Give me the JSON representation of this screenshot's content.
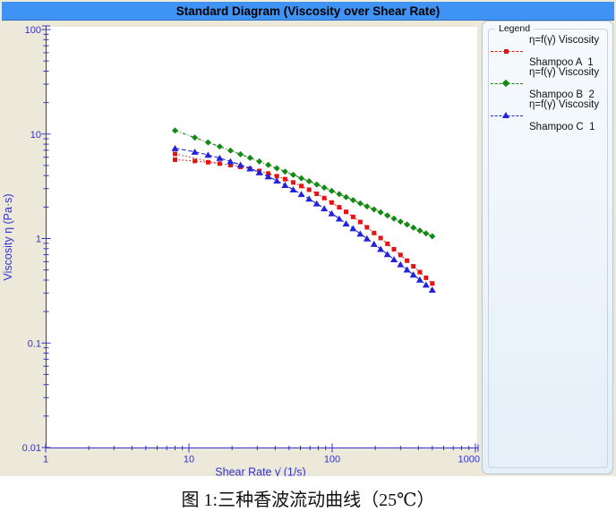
{
  "title_bar": {
    "text": "Standard Diagram (Viscosity over Shear Rate)"
  },
  "legend": {
    "title": "Legend"
  },
  "caption": "图 1:三种香波流动曲线（25℃）",
  "colors": {
    "title_bar_bg": "#3e93f4",
    "widget_bg": "#ece8da",
    "plot_bg": "#ffffff",
    "axis": "#3232cd",
    "legend_panel_bg": "#eaf2fb",
    "series_a_red": "#e41414",
    "series_b_green": "#128a12",
    "series_c_blue": "#2222dd"
  },
  "chart_data": {
    "type": "line",
    "title": "Standard Diagram (Viscosity over Shear Rate)",
    "x_axis": {
      "label": "Shear Rate γ̇ (1/s)",
      "scale": "log",
      "min": 1,
      "max": 1000,
      "ticks": [
        "1",
        "10",
        "100",
        "1000"
      ]
    },
    "y_axis": {
      "label": "Viscosity η (Pa·s)",
      "scale": "log",
      "min": 0.01,
      "max": 100,
      "ticks": [
        "100",
        "10",
        "1",
        "0.1",
        "0.01"
      ]
    },
    "grid": false,
    "legend_position": "right",
    "series": [
      {
        "id": "shampoo-a",
        "label_line1": "η=f(γ̇) Viscosity",
        "label_line2": "Shampoo A  1",
        "color": "#e41414",
        "marker": "square",
        "line_style": "dotted",
        "points": [
          [
            8,
            5.68
          ],
          [
            11,
            5.52
          ],
          [
            13.6,
            5.37
          ],
          [
            16.4,
            5.21
          ],
          [
            19.5,
            5.04
          ],
          [
            22.9,
            4.85
          ],
          [
            26.7,
            4.65
          ],
          [
            31,
            4.43
          ],
          [
            35.8,
            4.19
          ],
          [
            41.1,
            3.95
          ],
          [
            46.9,
            3.7
          ],
          [
            53.5,
            3.44
          ],
          [
            60.9,
            3.18
          ],
          [
            69,
            2.93
          ],
          [
            78,
            2.68
          ],
          [
            88,
            2.44
          ],
          [
            99.2,
            2.21
          ],
          [
            112,
            1.99
          ],
          [
            125,
            1.8
          ],
          [
            140,
            1.61
          ],
          [
            157,
            1.44
          ],
          [
            175,
            1.28
          ],
          [
            196,
            1.13
          ],
          [
            218,
            1.01
          ],
          [
            243,
            0.891
          ],
          [
            270,
            0.789
          ],
          [
            300,
            0.696
          ],
          [
            333,
            0.614
          ],
          [
            369,
            0.542
          ],
          [
            409,
            0.477
          ],
          [
            452,
            0.421
          ],
          [
            500,
            0.371
          ]
        ],
        "extra_branch": [
          [
            8,
            6.45
          ],
          [
            16.4,
            5.21
          ]
        ]
      },
      {
        "id": "shampoo-b",
        "label_line1": "η=f(γ̇) Viscosity",
        "label_line2": "Shampoo B  2",
        "color": "#128a12",
        "marker": "diamond",
        "line_style": "dash-dot",
        "points": [
          [
            8,
            10.8
          ],
          [
            11,
            9.24
          ],
          [
            13.6,
            8.32
          ],
          [
            16.4,
            7.58
          ],
          [
            19.5,
            6.95
          ],
          [
            22.9,
            6.4
          ],
          [
            26.7,
            5.91
          ],
          [
            31,
            5.46
          ],
          [
            35.8,
            5.06
          ],
          [
            41.1,
            4.7
          ],
          [
            46.9,
            4.37
          ],
          [
            53.5,
            4.07
          ],
          [
            60.9,
            3.78
          ],
          [
            69,
            3.53
          ],
          [
            78,
            3.29
          ],
          [
            88,
            3.07
          ],
          [
            99.2,
            2.86
          ],
          [
            112,
            2.66
          ],
          [
            125,
            2.49
          ],
          [
            140,
            2.33
          ],
          [
            157,
            2.17
          ],
          [
            175,
            2.03
          ],
          [
            196,
            1.9
          ],
          [
            218,
            1.78
          ],
          [
            243,
            1.66
          ],
          [
            270,
            1.55
          ],
          [
            300,
            1.45
          ],
          [
            333,
            1.36
          ],
          [
            369,
            1.27
          ],
          [
            409,
            1.19
          ],
          [
            452,
            1.12
          ],
          [
            500,
            1.05
          ]
        ]
      },
      {
        "id": "shampoo-c",
        "label_line1": "η=f(γ̇) Viscosity",
        "label_line2": "Shampoo C  1",
        "color": "#2222dd",
        "marker": "triangle",
        "line_style": "dashed",
        "points": [
          [
            8,
            7.31
          ],
          [
            11,
            6.75
          ],
          [
            13.6,
            6.31
          ],
          [
            16.4,
            5.89
          ],
          [
            19.5,
            5.47
          ],
          [
            22.9,
            5.07
          ],
          [
            26.7,
            4.68
          ],
          [
            31,
            4.29
          ],
          [
            35.8,
            3.92
          ],
          [
            41.1,
            3.57
          ],
          [
            46.9,
            3.25
          ],
          [
            53.5,
            2.94
          ],
          [
            60.9,
            2.66
          ],
          [
            69,
            2.4
          ],
          [
            78,
            2.16
          ],
          [
            88,
            1.94
          ],
          [
            99.2,
            1.74
          ],
          [
            112,
            1.55
          ],
          [
            125,
            1.39
          ],
          [
            140,
            1.25
          ],
          [
            157,
            1.11
          ],
          [
            175,
            1.0
          ],
          [
            196,
            0.886
          ],
          [
            218,
            0.793
          ],
          [
            243,
            0.707
          ],
          [
            270,
            0.632
          ],
          [
            300,
            0.565
          ],
          [
            333,
            0.504
          ],
          [
            369,
            0.451
          ],
          [
            409,
            0.403
          ],
          [
            452,
            0.361
          ],
          [
            500,
            0.323
          ]
        ]
      }
    ]
  }
}
